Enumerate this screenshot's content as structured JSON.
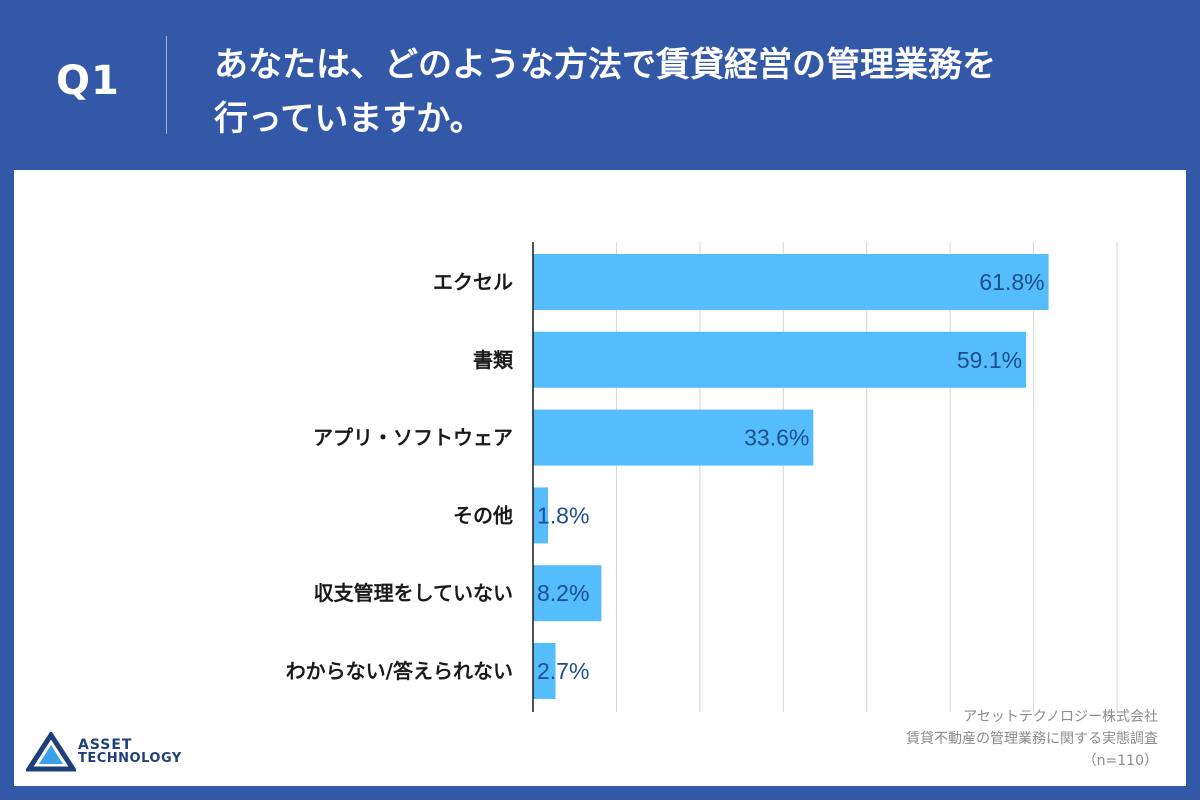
{
  "header": {
    "q_label": "Q1",
    "question_line1": "あなたは、どのような方法で賃貸経営の管理業務を",
    "question_line2": "行っていますか。"
  },
  "chart_data": {
    "type": "bar",
    "orientation": "horizontal",
    "categories": [
      "エクセル",
      "書類",
      "アプリ・ソフトウェア",
      "その他",
      "収支管理をしていない",
      "わからない/答えられない"
    ],
    "values": [
      61.8,
      59.1,
      33.6,
      1.8,
      8.2,
      2.7
    ],
    "value_labels": [
      "61.8%",
      "59.1%",
      "33.6%",
      "1.8%",
      "8.2%",
      "2.7%"
    ],
    "xlim": [
      0,
      70
    ],
    "grid": true,
    "bar_color": "#56bdfc"
  },
  "source": {
    "company": "アセットテクノロジー株式会社",
    "survey": "賃貸不動産の管理業務に関する実態調査",
    "sample": "（n=110）"
  },
  "logo": {
    "line1": "ASSET",
    "line2": "TECHNOLOGY"
  },
  "colors": {
    "background": "#3358a8",
    "panel": "#ffffff",
    "value_text": "#1d4e8f",
    "logo": "#1f3f7a"
  }
}
